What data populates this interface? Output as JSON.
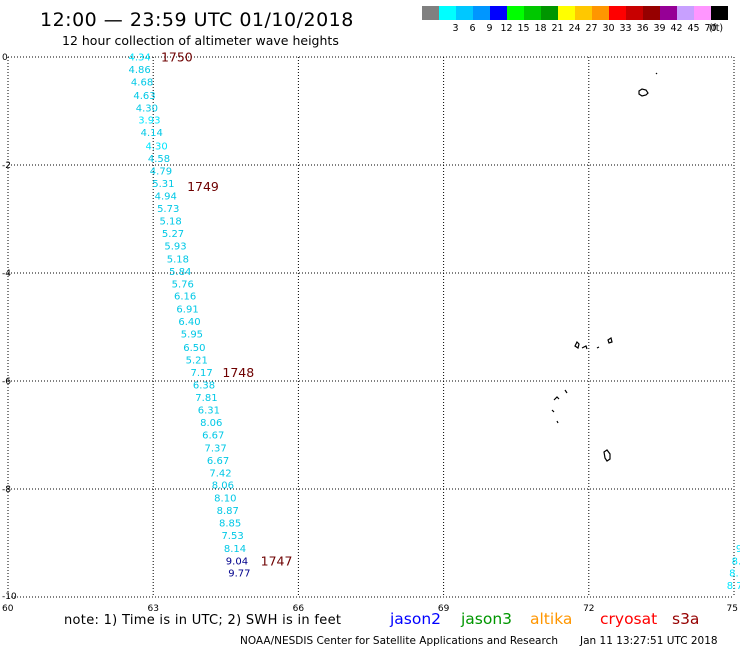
{
  "header": {
    "title": "12:00 — 23:59 UTC 01/10/2018",
    "subtitle": "12 hour collection of altimeter wave heights"
  },
  "legend": {
    "unit": "(ft)",
    "bins": [
      {
        "label": "",
        "color": "#808080"
      },
      {
        "label": "3",
        "color": "#00ffff"
      },
      {
        "label": "6",
        "color": "#00c8ff"
      },
      {
        "label": "9",
        "color": "#0096ff"
      },
      {
        "label": "12",
        "color": "#0000ff"
      },
      {
        "label": "15",
        "color": "#00ff00"
      },
      {
        "label": "18",
        "color": "#00c800"
      },
      {
        "label": "21",
        "color": "#009600"
      },
      {
        "label": "24",
        "color": "#ffff00"
      },
      {
        "label": "27",
        "color": "#ffc800"
      },
      {
        "label": "30",
        "color": "#ff9600"
      },
      {
        "label": "33",
        "color": "#ff0000"
      },
      {
        "label": "36",
        "color": "#c80000"
      },
      {
        "label": "39",
        "color": "#960000"
      },
      {
        "label": "42",
        "color": "#960096"
      },
      {
        "label": "45",
        "color": "#c8a0ff"
      },
      {
        "label": "70",
        "color": "#ff96ff"
      },
      {
        "label": "",
        "color": "#000000"
      }
    ]
  },
  "map": {
    "lat_range": [
      -10,
      0
    ],
    "lon_range": [
      60,
      75
    ],
    "lat_ticks": [
      "0",
      "-2",
      "-4",
      "-6",
      "-8",
      "-10"
    ],
    "lon_ticks": [
      "60",
      "63",
      "66",
      "69",
      "72",
      "75"
    ],
    "colors": {
      "cyan": "#00c8e6",
      "light_cyan": "#00e6ff",
      "navy": "#00008c",
      "time_label": "#6e0000"
    }
  },
  "track": {
    "readings": [
      {
        "lon": 62.72,
        "lat": 0.0,
        "value": "4.34",
        "color": "#00e6ff"
      },
      {
        "lon": 62.72,
        "lat": -0.23,
        "value": "4.86",
        "color": "#00c8e6"
      },
      {
        "lon": 62.77,
        "lat": -0.46,
        "value": "4.68",
        "color": "#00c8e6"
      },
      {
        "lon": 62.82,
        "lat": -0.71,
        "value": "4.63",
        "color": "#00c8e6"
      },
      {
        "lon": 62.87,
        "lat": -0.94,
        "value": "4.30",
        "color": "#00c8e6"
      },
      {
        "lon": 62.92,
        "lat": -1.17,
        "value": "3.93",
        "color": "#00e6ff"
      },
      {
        "lon": 62.97,
        "lat": -1.4,
        "value": "4.14",
        "color": "#00c8e6"
      },
      {
        "lon": 63.07,
        "lat": -1.65,
        "value": "4.30",
        "color": "#00e6ff"
      },
      {
        "lon": 63.12,
        "lat": -1.88,
        "value": "4.58",
        "color": "#00c8e6"
      },
      {
        "lon": 63.16,
        "lat": -2.11,
        "value": "4.79",
        "color": "#00c8e6"
      },
      {
        "lon": 63.21,
        "lat": -2.34,
        "value": "5.31",
        "color": "#00c8e6"
      },
      {
        "lon": 63.26,
        "lat": -2.57,
        "value": "4.94",
        "color": "#00c8e6"
      },
      {
        "lon": 63.31,
        "lat": -2.81,
        "value": "5.73",
        "color": "#00c8e6"
      },
      {
        "lon": 63.36,
        "lat": -3.04,
        "value": "5.18",
        "color": "#00c8e6"
      },
      {
        "lon": 63.41,
        "lat": -3.27,
        "value": "5.27",
        "color": "#00c8e6"
      },
      {
        "lon": 63.46,
        "lat": -3.5,
        "value": "5.93",
        "color": "#00c8e6"
      },
      {
        "lon": 63.51,
        "lat": -3.74,
        "value": "5.18",
        "color": "#00c8e6"
      },
      {
        "lon": 63.56,
        "lat": -3.97,
        "value": "5.84",
        "color": "#00c8e6"
      },
      {
        "lon": 63.61,
        "lat": -4.2,
        "value": "5.76",
        "color": "#00c8e6"
      },
      {
        "lon": 63.66,
        "lat": -4.43,
        "value": "6.16",
        "color": "#00c8e6"
      },
      {
        "lon": 63.71,
        "lat": -4.67,
        "value": "6.91",
        "color": "#00c8e6"
      },
      {
        "lon": 63.75,
        "lat": -4.9,
        "value": "6.40",
        "color": "#00c8e6"
      },
      {
        "lon": 63.8,
        "lat": -5.13,
        "value": "5.95",
        "color": "#00c8e6"
      },
      {
        "lon": 63.85,
        "lat": -5.38,
        "value": "6.50",
        "color": "#00c8e6"
      },
      {
        "lon": 63.9,
        "lat": -5.61,
        "value": "5.21",
        "color": "#00c8e6"
      },
      {
        "lon": 64.0,
        "lat": -5.84,
        "value": "7.17",
        "color": "#00c8e6"
      },
      {
        "lon": 64.05,
        "lat": -6.07,
        "value": "6.38",
        "color": "#00c8e6"
      },
      {
        "lon": 64.1,
        "lat": -6.31,
        "value": "7.81",
        "color": "#00c8e6"
      },
      {
        "lon": 64.15,
        "lat": -6.54,
        "value": "6.31",
        "color": "#00c8e6"
      },
      {
        "lon": 64.2,
        "lat": -6.77,
        "value": "8.06",
        "color": "#00c8e6"
      },
      {
        "lon": 64.24,
        "lat": -7.0,
        "value": "6.67",
        "color": "#00c8e6"
      },
      {
        "lon": 64.29,
        "lat": -7.24,
        "value": "7.37",
        "color": "#00c8e6"
      },
      {
        "lon": 64.34,
        "lat": -7.47,
        "value": "6.67",
        "color": "#00c8e6"
      },
      {
        "lon": 64.39,
        "lat": -7.7,
        "value": "7.42",
        "color": "#00c8e6"
      },
      {
        "lon": 64.44,
        "lat": -7.93,
        "value": "8.06",
        "color": "#00c8e6"
      },
      {
        "lon": 64.49,
        "lat": -8.17,
        "value": "8.10",
        "color": "#00c8e6"
      },
      {
        "lon": 64.54,
        "lat": -8.4,
        "value": "8.87",
        "color": "#00c8e6"
      },
      {
        "lon": 64.59,
        "lat": -8.63,
        "value": "8.85",
        "color": "#00c8e6"
      },
      {
        "lon": 64.64,
        "lat": -8.86,
        "value": "7.53",
        "color": "#00c8e6"
      },
      {
        "lon": 64.69,
        "lat": -9.1,
        "value": "8.14",
        "color": "#00c8e6"
      },
      {
        "lon": 64.73,
        "lat": -9.33,
        "value": "9.04",
        "color": "#00008c"
      },
      {
        "lon": 64.78,
        "lat": -9.56,
        "value": "9.77",
        "color": "#00008c"
      }
    ],
    "time_labels": [
      {
        "lon": 63.16,
        "lat": 0.0,
        "text": "1750"
      },
      {
        "lon": 63.7,
        "lat": -2.4,
        "text": "1749"
      },
      {
        "lon": 64.43,
        "lat": -5.84,
        "text": "1748"
      },
      {
        "lon": 65.22,
        "lat": -9.33,
        "text": "1747"
      }
    ],
    "edge_readings": [
      {
        "lon": 75.04,
        "lat": -9.1,
        "value": "9"
      },
      {
        "lon": 74.95,
        "lat": -9.33,
        "value": "8."
      },
      {
        "lon": 74.9,
        "lat": -9.56,
        "value": "8."
      },
      {
        "lon": 74.85,
        "lat": -9.79,
        "value": "8.7"
      }
    ]
  },
  "note": "note: 1) Time is in UTC; 2) SWH is in feet",
  "satellites": [
    {
      "name": "jason2",
      "color": "#0000ff"
    },
    {
      "name": "jason3",
      "color": "#009600"
    },
    {
      "name": "altika",
      "color": "#ff9600"
    },
    {
      "name": "cryosat",
      "color": "#ff0000"
    },
    {
      "name": "s3a",
      "color": "#960000"
    }
  ],
  "footer": {
    "credit": "NOAA/NESDIS Center for Satellite Applications and Research",
    "timestamp": "Jan 11 13:27:51 UTC 2018"
  }
}
